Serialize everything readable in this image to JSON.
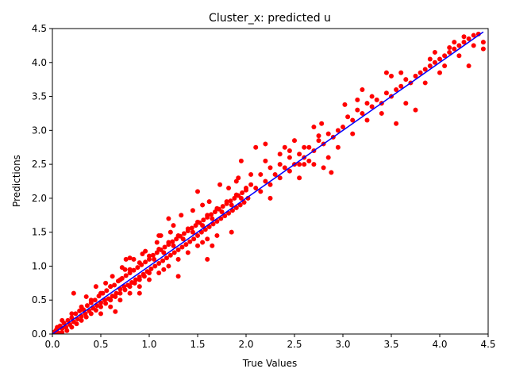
{
  "chart_data": {
    "type": "scatter",
    "title": "Cluster_x: predicted u",
    "xlabel": "True Values",
    "ylabel": "Predictions",
    "xlim": [
      0,
      4.5
    ],
    "ylim": [
      0,
      4.5
    ],
    "xticks": [
      "0.0",
      "0.5",
      "1.0",
      "1.5",
      "2.0",
      "2.5",
      "3.0",
      "3.5",
      "4.0",
      "4.5"
    ],
    "yticks": [
      "0.0",
      "0.5",
      "1.0",
      "1.5",
      "2.0",
      "2.5",
      "3.0",
      "3.5",
      "4.0",
      "4.5"
    ],
    "grid": false,
    "legend": "none",
    "series": [
      {
        "kind": "scatter",
        "color": "#ff0000",
        "points": [
          [
            0.02,
            0.03
          ],
          [
            0.04,
            0.06
          ],
          [
            0.06,
            0.02
          ],
          [
            0.08,
            0.12
          ],
          [
            0.1,
            0.08
          ],
          [
            0.12,
            0.16
          ],
          [
            0.14,
            0.1
          ],
          [
            0.16,
            0.2
          ],
          [
            0.18,
            0.14
          ],
          [
            0.2,
            0.24
          ],
          [
            0.22,
            0.18
          ],
          [
            0.24,
            0.3
          ],
          [
            0.26,
            0.22
          ],
          [
            0.28,
            0.34
          ],
          [
            0.3,
            0.26
          ],
          [
            0.22,
            0.6
          ],
          [
            0.32,
            0.36
          ],
          [
            0.34,
            0.3
          ],
          [
            0.36,
            0.42
          ],
          [
            0.38,
            0.34
          ],
          [
            0.4,
            0.46
          ],
          [
            0.42,
            0.38
          ],
          [
            0.44,
            0.5
          ],
          [
            0.46,
            0.42
          ],
          [
            0.48,
            0.56
          ],
          [
            0.5,
            0.46
          ],
          [
            0.52,
            0.6
          ],
          [
            0.54,
            0.5
          ],
          [
            0.56,
            0.64
          ],
          [
            0.58,
            0.52
          ],
          [
            0.6,
            0.7
          ],
          [
            0.62,
            0.56
          ],
          [
            0.64,
            0.72
          ],
          [
            0.66,
            0.6
          ],
          [
            0.68,
            0.78
          ],
          [
            0.7,
            0.66
          ],
          [
            0.72,
            0.82
          ],
          [
            0.74,
            0.7
          ],
          [
            0.76,
            0.86
          ],
          [
            0.78,
            0.72
          ],
          [
            0.8,
            0.9
          ],
          [
            0.82,
            0.76
          ],
          [
            0.84,
            0.94
          ],
          [
            0.86,
            0.8
          ],
          [
            0.88,
            0.98
          ],
          [
            0.9,
            0.84
          ],
          [
            0.92,
            1.02
          ],
          [
            0.94,
            0.88
          ],
          [
            0.96,
            1.06
          ],
          [
            0.98,
            0.92
          ],
          [
            0.65,
            0.33
          ],
          [
            0.75,
            0.95
          ],
          [
            0.76,
            1.1
          ],
          [
            0.8,
            1.12
          ],
          [
            0.9,
            0.6
          ],
          [
            0.93,
            1.18
          ],
          [
            1.0,
            1.1
          ],
          [
            1.02,
            0.96
          ],
          [
            1.04,
            1.16
          ],
          [
            1.06,
            1.0
          ],
          [
            1.08,
            1.2
          ],
          [
            1.1,
            1.04
          ],
          [
            1.12,
            1.24
          ],
          [
            1.14,
            1.08
          ],
          [
            1.16,
            1.28
          ],
          [
            1.18,
            1.12
          ],
          [
            1.2,
            1.32
          ],
          [
            1.22,
            1.16
          ],
          [
            1.24,
            1.36
          ],
          [
            1.26,
            1.2
          ],
          [
            1.28,
            1.4
          ],
          [
            1.3,
            1.24
          ],
          [
            1.32,
            1.44
          ],
          [
            1.34,
            1.28
          ],
          [
            1.36,
            1.48
          ],
          [
            1.38,
            1.32
          ],
          [
            1.4,
            1.52
          ],
          [
            1.42,
            1.36
          ],
          [
            1.44,
            1.56
          ],
          [
            1.46,
            1.4
          ],
          [
            1.15,
            0.95
          ],
          [
            1.2,
            1.7
          ],
          [
            1.3,
            0.85
          ],
          [
            1.22,
            1.5
          ],
          [
            1.1,
            1.45
          ],
          [
            1.48,
            1.6
          ],
          [
            1.5,
            1.45
          ],
          [
            1.52,
            1.64
          ],
          [
            1.54,
            1.5
          ],
          [
            1.56,
            1.68
          ],
          [
            1.58,
            1.54
          ],
          [
            1.6,
            1.72
          ],
          [
            1.62,
            1.58
          ],
          [
            1.64,
            1.76
          ],
          [
            1.66,
            1.62
          ],
          [
            1.68,
            1.8
          ],
          [
            1.7,
            1.66
          ],
          [
            1.72,
            1.84
          ],
          [
            1.74,
            1.7
          ],
          [
            1.76,
            1.88
          ],
          [
            1.78,
            1.74
          ],
          [
            1.8,
            1.92
          ],
          [
            1.82,
            1.78
          ],
          [
            1.84,
            1.96
          ],
          [
            1.86,
            1.82
          ],
          [
            1.88,
            2.0
          ],
          [
            1.9,
            1.86
          ],
          [
            1.92,
            2.04
          ],
          [
            1.94,
            1.9
          ],
          [
            1.96,
            2.08
          ],
          [
            1.98,
            1.94
          ],
          [
            2.0,
            2.12
          ],
          [
            1.65,
            1.3
          ],
          [
            1.6,
            1.1
          ],
          [
            1.85,
            1.5
          ],
          [
            1.5,
            2.1
          ],
          [
            1.55,
            1.9
          ],
          [
            1.73,
            2.2
          ],
          [
            1.95,
            2.55
          ],
          [
            1.92,
            2.3
          ],
          [
            2.02,
            2.0
          ],
          [
            2.05,
            2.2
          ],
          [
            2.1,
            2.15
          ],
          [
            2.15,
            2.35
          ],
          [
            2.2,
            2.25
          ],
          [
            2.25,
            2.45
          ],
          [
            2.3,
            2.35
          ],
          [
            2.35,
            2.5
          ],
          [
            2.4,
            2.45
          ],
          [
            2.45,
            2.6
          ],
          [
            2.5,
            2.5
          ],
          [
            2.55,
            2.65
          ],
          [
            2.6,
            2.6
          ],
          [
            2.65,
            2.75
          ],
          [
            2.7,
            2.7
          ],
          [
            2.75,
            2.85
          ],
          [
            2.8,
            2.8
          ],
          [
            2.85,
            2.95
          ],
          [
            2.9,
            2.9
          ],
          [
            2.95,
            3.0
          ],
          [
            2.1,
            2.75
          ],
          [
            2.2,
            2.8
          ],
          [
            2.25,
            2.0
          ],
          [
            2.4,
            2.75
          ],
          [
            2.5,
            2.85
          ],
          [
            2.55,
            2.3
          ],
          [
            2.6,
            2.5
          ],
          [
            2.8,
            2.45
          ],
          [
            2.78,
            3.1
          ],
          [
            2.85,
            2.6
          ],
          [
            2.7,
            3.05
          ],
          [
            2.95,
            2.75
          ],
          [
            2.88,
            2.38
          ],
          [
            2.75,
            2.92
          ],
          [
            2.2,
            2.55
          ],
          [
            3.0,
            3.05
          ],
          [
            3.05,
            3.2
          ],
          [
            3.1,
            3.15
          ],
          [
            3.15,
            3.3
          ],
          [
            3.2,
            3.25
          ],
          [
            3.25,
            3.4
          ],
          [
            3.3,
            3.35
          ],
          [
            3.35,
            3.45
          ],
          [
            3.4,
            3.4
          ],
          [
            3.45,
            3.55
          ],
          [
            3.5,
            3.5
          ],
          [
            3.55,
            3.6
          ],
          [
            3.6,
            3.65
          ],
          [
            3.65,
            3.75
          ],
          [
            3.7,
            3.7
          ],
          [
            3.02,
            3.38
          ],
          [
            3.1,
            2.95
          ],
          [
            3.2,
            3.6
          ],
          [
            3.3,
            3.5
          ],
          [
            3.4,
            3.25
          ],
          [
            3.45,
            3.85
          ],
          [
            3.55,
            3.1
          ],
          [
            3.6,
            3.85
          ],
          [
            3.65,
            3.4
          ],
          [
            3.75,
            3.3
          ],
          [
            3.25,
            3.15
          ],
          [
            3.5,
            3.8
          ],
          [
            3.15,
            3.45
          ],
          [
            3.75,
            3.8
          ],
          [
            3.8,
            3.85
          ],
          [
            3.85,
            3.9
          ],
          [
            3.9,
            3.95
          ],
          [
            3.95,
            4.0
          ],
          [
            4.0,
            4.05
          ],
          [
            4.05,
            4.1
          ],
          [
            4.1,
            4.15
          ],
          [
            4.15,
            4.2
          ],
          [
            4.2,
            4.25
          ],
          [
            4.25,
            4.3
          ],
          [
            4.3,
            4.35
          ],
          [
            4.35,
            4.4
          ],
          [
            4.4,
            4.42
          ],
          [
            4.45,
            4.3
          ],
          [
            4.45,
            4.2
          ],
          [
            4.3,
            3.95
          ],
          [
            4.0,
            3.85
          ],
          [
            3.95,
            4.15
          ],
          [
            4.1,
            4.22
          ],
          [
            4.2,
            4.1
          ],
          [
            4.25,
            4.38
          ],
          [
            4.05,
            3.95
          ],
          [
            3.9,
            4.05
          ],
          [
            3.85,
            3.7
          ],
          [
            4.35,
            4.25
          ],
          [
            4.15,
            4.3
          ],
          [
            0.05,
            0.1
          ],
          [
            0.1,
            0.02
          ],
          [
            0.15,
            0.05
          ],
          [
            0.2,
            0.1
          ],
          [
            0.25,
            0.15
          ],
          [
            0.3,
            0.2
          ],
          [
            0.35,
            0.25
          ],
          [
            0.4,
            0.3
          ],
          [
            0.45,
            0.35
          ],
          [
            0.5,
            0.4
          ],
          [
            0.55,
            0.45
          ],
          [
            0.6,
            0.5
          ],
          [
            0.65,
            0.55
          ],
          [
            0.7,
            0.6
          ],
          [
            0.75,
            0.65
          ],
          [
            0.8,
            0.7
          ],
          [
            0.85,
            0.75
          ],
          [
            0.9,
            0.8
          ],
          [
            0.95,
            0.85
          ],
          [
            1.0,
            0.9
          ],
          [
            0.1,
            0.2
          ],
          [
            0.2,
            0.3
          ],
          [
            0.3,
            0.4
          ],
          [
            0.4,
            0.5
          ],
          [
            0.5,
            0.6
          ],
          [
            0.6,
            0.7
          ],
          [
            0.7,
            0.8
          ],
          [
            0.8,
            0.95
          ],
          [
            0.9,
            1.05
          ],
          [
            1.0,
            1.15
          ],
          [
            1.1,
            1.25
          ],
          [
            1.2,
            1.35
          ],
          [
            1.3,
            1.45
          ],
          [
            1.4,
            1.55
          ],
          [
            1.5,
            1.65
          ],
          [
            1.6,
            1.75
          ],
          [
            1.7,
            1.85
          ],
          [
            1.8,
            1.95
          ],
          [
            1.9,
            2.05
          ],
          [
            2.0,
            2.15
          ],
          [
            1.05,
            1.1
          ],
          [
            1.15,
            1.2
          ],
          [
            1.25,
            1.3
          ],
          [
            1.35,
            1.4
          ],
          [
            1.45,
            1.5
          ],
          [
            1.55,
            1.6
          ],
          [
            1.65,
            1.7
          ],
          [
            1.75,
            1.8
          ],
          [
            1.85,
            1.9
          ],
          [
            1.95,
            2.0
          ],
          [
            1.12,
            1.45
          ],
          [
            1.25,
            1.6
          ],
          [
            1.33,
            1.75
          ],
          [
            1.45,
            1.82
          ],
          [
            1.55,
            1.35
          ],
          [
            1.62,
            1.95
          ],
          [
            1.7,
            1.45
          ],
          [
            1.82,
            2.15
          ],
          [
            1.9,
            2.25
          ],
          [
            2.05,
            2.35
          ],
          [
            0.35,
            0.55
          ],
          [
            0.45,
            0.7
          ],
          [
            0.55,
            0.75
          ],
          [
            0.62,
            0.85
          ],
          [
            0.72,
            0.98
          ],
          [
            0.84,
            1.1
          ],
          [
            0.96,
            1.22
          ],
          [
            1.08,
            1.35
          ],
          [
            0.5,
            0.3
          ],
          [
            0.6,
            0.4
          ],
          [
            0.7,
            0.5
          ],
          [
            0.8,
            0.6
          ],
          [
            0.9,
            0.7
          ],
          [
            1.0,
            0.8
          ],
          [
            1.1,
            0.9
          ],
          [
            1.2,
            1.0
          ],
          [
            1.3,
            1.1
          ],
          [
            1.4,
            1.2
          ],
          [
            1.5,
            1.3
          ],
          [
            1.6,
            1.4
          ],
          [
            2.15,
            2.1
          ],
          [
            2.25,
            2.2
          ],
          [
            2.35,
            2.3
          ],
          [
            2.45,
            2.4
          ],
          [
            2.55,
            2.5
          ],
          [
            2.65,
            2.55
          ],
          [
            2.35,
            2.65
          ],
          [
            2.45,
            2.7
          ],
          [
            2.6,
            2.75
          ],
          [
            2.7,
            2.5
          ]
        ]
      },
      {
        "kind": "line",
        "color": "#0000ff",
        "points": [
          [
            0.0,
            0.0
          ],
          [
            4.45,
            4.45
          ]
        ]
      }
    ]
  }
}
